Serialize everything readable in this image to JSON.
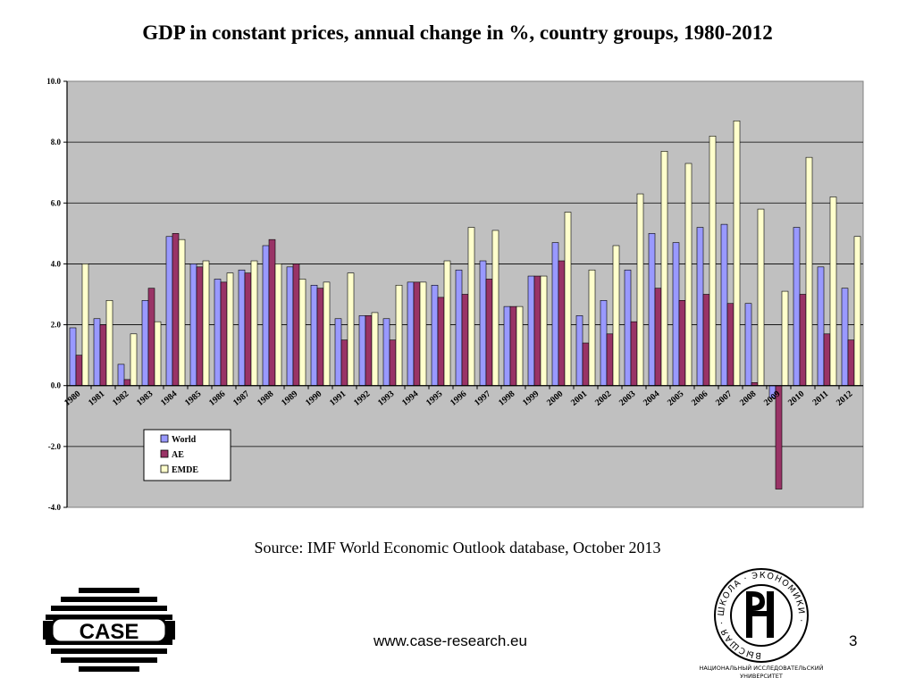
{
  "slide": {
    "title": "GDP in constant prices, annual change in %, country groups, 1980-2012",
    "source": "Source: IMF World Economic Outlook database, October 2013",
    "url": "www.case-research.eu",
    "page_number": "3"
  },
  "logos": {
    "case_text": "CASE",
    "hse_circle_text": "ВЫСШАЯ · ШКОЛА · ЭКОНОМИКИ ·",
    "hse_caption_line1": "НАЦИОНАЛЬНЫЙ ИССЛЕДОВАТЕЛЬСКИЙ",
    "hse_caption_line2": "УНИВЕРСИТЕТ"
  },
  "colors": {
    "plot_background": "#c0c0c0",
    "world": "#9999ff",
    "ae": "#993366",
    "emde": "#ffffcc",
    "gridline": "#000000"
  },
  "chart_data": {
    "type": "bar",
    "title": "",
    "xlabel": "",
    "ylabel": "",
    "ylim": [
      -4,
      10
    ],
    "yticks": [
      -4,
      -2,
      0,
      2,
      4,
      6,
      8,
      10
    ],
    "ytick_labels": [
      "-4.0",
      "-2.0",
      "0.0",
      "2.0",
      "4.0",
      "6.0",
      "8.0",
      "10.0"
    ],
    "grid": true,
    "legend_position": "bottom-left",
    "categories": [
      "1980",
      "1981",
      "1982",
      "1983",
      "1984",
      "1985",
      "1986",
      "1987",
      "1988",
      "1989",
      "1990",
      "1991",
      "1992",
      "1993",
      "1994",
      "1995",
      "1996",
      "1997",
      "1998",
      "1999",
      "2000",
      "2001",
      "2002",
      "2003",
      "2004",
      "2005",
      "2006",
      "2007",
      "2008",
      "2009",
      "2010",
      "2011",
      "2012"
    ],
    "series": [
      {
        "name": "World",
        "color": "#9999ff",
        "values": [
          1.9,
          2.2,
          0.7,
          2.8,
          4.9,
          4.0,
          3.5,
          3.8,
          4.6,
          3.9,
          3.3,
          2.2,
          2.3,
          2.2,
          3.4,
          3.3,
          3.8,
          4.1,
          2.6,
          3.6,
          4.7,
          2.3,
          2.8,
          3.8,
          5.0,
          4.7,
          5.2,
          5.3,
          2.7,
          -0.4,
          5.2,
          3.9,
          3.2
        ]
      },
      {
        "name": "AE",
        "color": "#993366",
        "values": [
          1.0,
          2.0,
          0.2,
          3.2,
          5.0,
          3.9,
          3.4,
          3.7,
          4.8,
          4.0,
          3.2,
          1.5,
          2.3,
          1.5,
          3.4,
          2.9,
          3.0,
          3.5,
          2.6,
          3.6,
          4.1,
          1.4,
          1.7,
          2.1,
          3.2,
          2.8,
          3.0,
          2.7,
          0.1,
          -3.4,
          3.0,
          1.7,
          1.5
        ]
      },
      {
        "name": "EMDE",
        "color": "#ffffcc",
        "values": [
          4.0,
          2.8,
          1.7,
          2.1,
          4.8,
          4.1,
          3.7,
          4.1,
          4.0,
          3.5,
          3.4,
          3.7,
          2.4,
          3.3,
          3.4,
          4.1,
          5.2,
          5.1,
          2.6,
          3.6,
          5.7,
          3.8,
          4.6,
          6.3,
          7.7,
          7.3,
          8.2,
          8.7,
          5.8,
          3.1,
          7.5,
          6.2,
          4.9
        ]
      }
    ]
  }
}
